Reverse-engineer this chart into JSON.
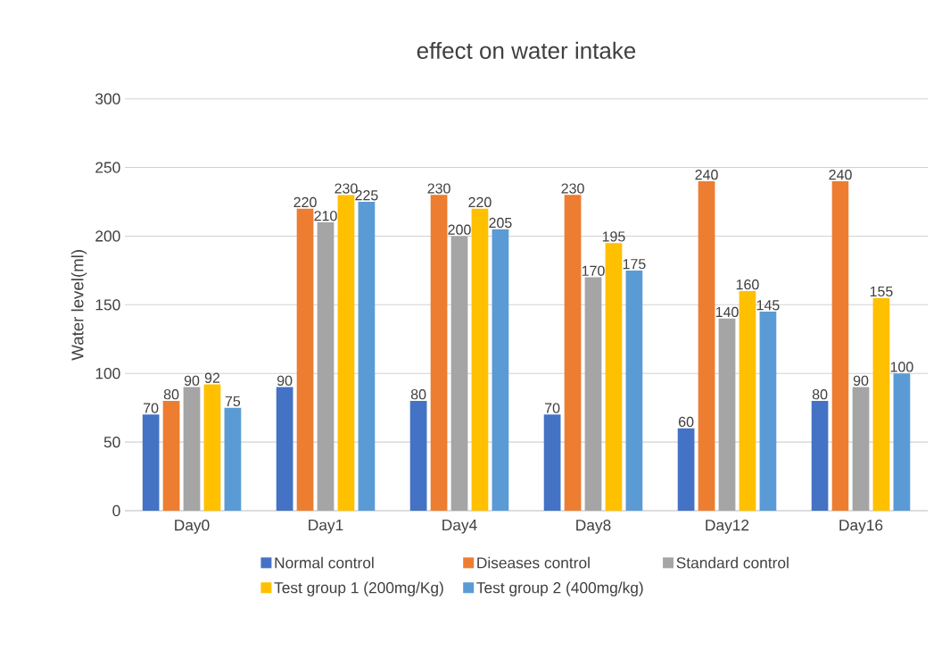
{
  "chart_data": {
    "type": "bar",
    "title": "effect on water intake",
    "ylabel": "Water level(ml)",
    "categories": [
      "Day0",
      "Day1",
      "Day4",
      "Day8",
      "Day12",
      "Day16"
    ],
    "series": [
      {
        "name": "Normal control",
        "color": "#4472c4",
        "values": [
          70,
          90,
          80,
          70,
          60,
          80
        ]
      },
      {
        "name": "Diseases control",
        "color": "#ed7d31",
        "values": [
          80,
          220,
          230,
          230,
          240,
          240
        ]
      },
      {
        "name": "Standard control",
        "color": "#a5a5a5",
        "values": [
          90,
          210,
          200,
          170,
          140,
          90
        ]
      },
      {
        "name": "Test group 1 (200mg/Kg)",
        "color": "#ffc000",
        "values": [
          92,
          230,
          220,
          195,
          160,
          155
        ]
      },
      {
        "name": "Test group 2 (400mg/kg)",
        "color": "#5b9bd5",
        "values": [
          75,
          225,
          205,
          175,
          145,
          100
        ]
      }
    ],
    "ylim": [
      0,
      300
    ],
    "yticks": [
      0,
      50,
      100,
      150,
      200,
      250,
      300
    ],
    "grid": "y",
    "legend": "bottom",
    "data_labels": true
  }
}
